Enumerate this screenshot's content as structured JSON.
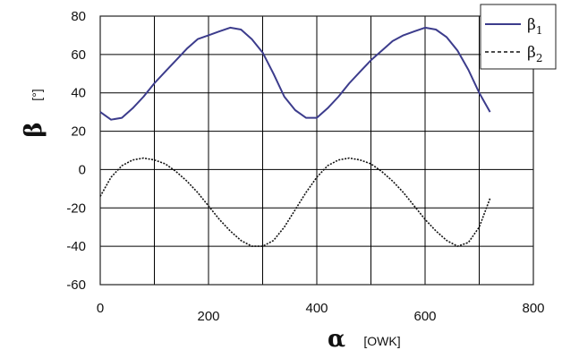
{
  "chart_data": {
    "type": "line",
    "xlabel": {
      "symbol": "α",
      "unit": "[OWK]"
    },
    "ylabel": {
      "symbol": "β",
      "unit": "[°]"
    },
    "xlim": [
      0,
      800
    ],
    "ylim": [
      -60,
      80
    ],
    "x_ticks": [
      0,
      200,
      400,
      600,
      800
    ],
    "y_ticks": [
      -60,
      -40,
      -20,
      0,
      20,
      40,
      60,
      80
    ],
    "grid": true,
    "legend": "top-right",
    "series": [
      {
        "name": "β1",
        "name_base": "β",
        "name_sub": "1",
        "style": "solid",
        "color": "#3c3c8c",
        "x": [
          0,
          20,
          40,
          60,
          80,
          100,
          120,
          140,
          160,
          180,
          200,
          220,
          240,
          260,
          280,
          300,
          320,
          340,
          360,
          380,
          400,
          420,
          440,
          460,
          480,
          500,
          520,
          540,
          560,
          580,
          600,
          620,
          640,
          660,
          680,
          700,
          720
        ],
        "y": [
          30,
          26,
          27,
          32,
          38,
          45,
          51,
          57,
          63,
          68,
          70,
          72,
          74,
          73,
          68,
          61,
          50,
          38,
          31,
          27,
          27,
          32,
          38,
          45,
          51,
          57,
          62,
          67,
          70,
          72,
          74,
          73,
          69,
          62,
          52,
          40,
          30
        ]
      },
      {
        "name": "β2",
        "name_base": "β",
        "name_sub": "2",
        "style": "dashed",
        "color": "#111111",
        "x": [
          0,
          20,
          40,
          60,
          80,
          100,
          120,
          140,
          160,
          180,
          200,
          220,
          240,
          260,
          280,
          300,
          320,
          340,
          360,
          380,
          400,
          420,
          440,
          460,
          480,
          500,
          520,
          540,
          560,
          580,
          600,
          620,
          640,
          660,
          680,
          700,
          720
        ],
        "y": [
          -14,
          -4,
          2,
          5,
          6,
          5,
          3,
          -1,
          -6,
          -12,
          -19,
          -26,
          -32,
          -37,
          -40,
          -40,
          -37,
          -30,
          -21,
          -12,
          -4,
          2,
          5,
          6,
          5,
          3,
          -1,
          -6,
          -12,
          -19,
          -26,
          -32,
          -37,
          -40,
          -38,
          -30,
          -15
        ]
      }
    ]
  },
  "colors": {
    "axis": "#222222",
    "grid": "#000000",
    "background": "#ffffff"
  }
}
